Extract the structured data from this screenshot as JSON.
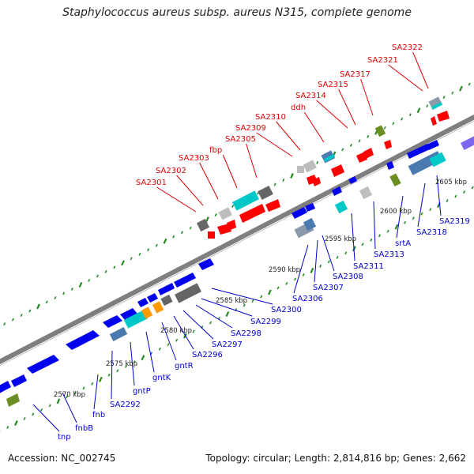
{
  "title": "Staphylococcus aureus subsp. aureus N315, complete genome",
  "footer": {
    "accession_label": "Accession: NC_002745",
    "summary": "Topology: circular; Length: 2,814,816 bp; Genes: 2,662"
  },
  "colors": {
    "backbone": "#7f7f7f",
    "forward_gene": "#0000ee",
    "reverse_gene": "#ff0000",
    "label_forward": "#0000cc",
    "label_reverse": "#dd0000",
    "tick_major": "#228b22",
    "gray_feature": "#666666",
    "light_gray_feature": "#bdbdbd",
    "cyan_feature": "#00c8c8",
    "steel_feature": "#4a7ab0",
    "orange_feature": "#ff9900",
    "olive_feature": "#6b8e23",
    "purple_feature": "#7b68ee"
  },
  "scale_labels": [
    "2570 kbp",
    "2575 kbp",
    "2580 kbp",
    "2585 kbp",
    "2590 kbp",
    "2595 kbp",
    "2600 kbp",
    "2605 kbp"
  ],
  "reverse_labels": [
    "SA2301",
    "SA2302",
    "SA2303",
    "fbp",
    "SA2305",
    "SA2309",
    "SA2310",
    "ddh",
    "SA2314",
    "SA2315",
    "SA2317",
    "SA2321",
    "SA2322"
  ],
  "forward_labels": [
    "tnp",
    "fnbB",
    "fnb",
    "SA2292",
    "gntP",
    "gntK",
    "gntR",
    "SA2296",
    "SA2297",
    "SA2298",
    "SA2299",
    "SA2300",
    "SA2306",
    "SA2307",
    "SA2308",
    "SA2311",
    "SA2313",
    "srtA",
    "SA2318",
    "SA2319"
  ]
}
